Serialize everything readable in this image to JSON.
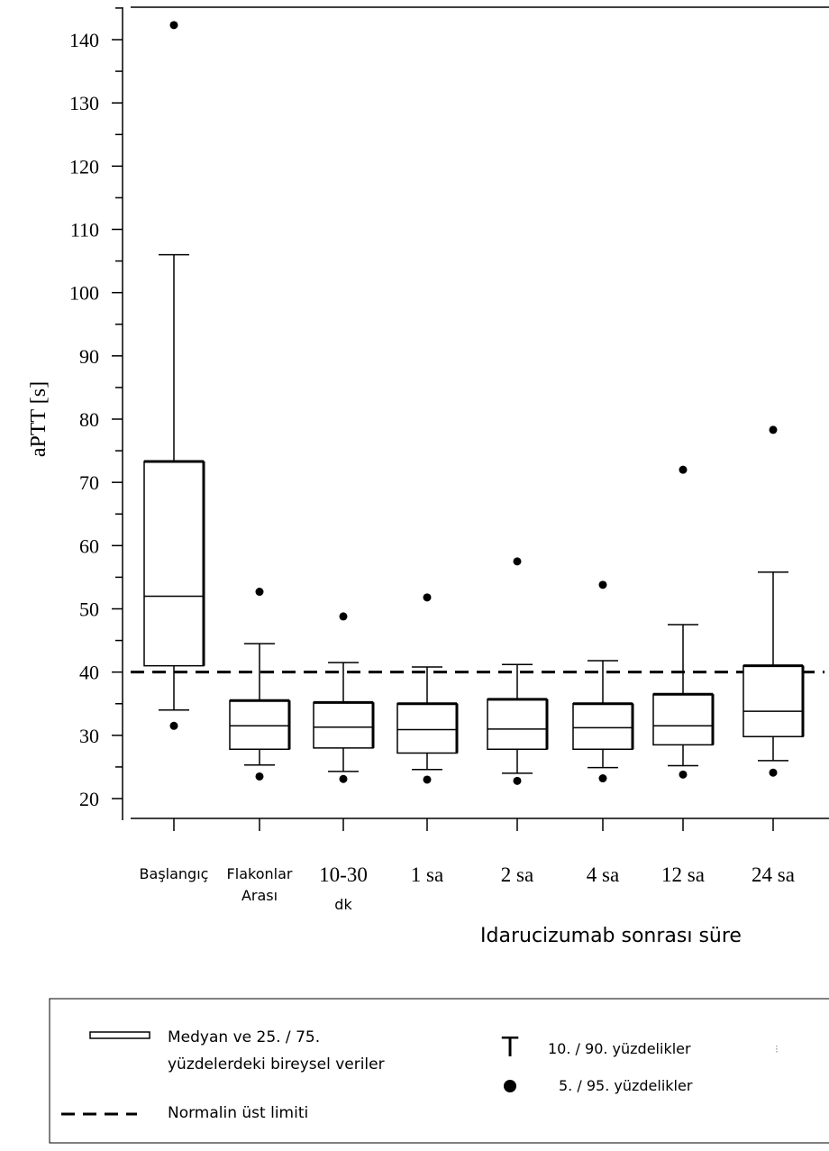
{
  "chart_data": {
    "type": "boxplot",
    "ylabel": "aPTT [s]",
    "xlabel": "Idarucizumab sonrası süre",
    "ylim": [
      17,
      147
    ],
    "yticks": [
      20,
      30,
      40,
      50,
      60,
      70,
      80,
      90,
      100,
      110,
      120,
      130,
      140
    ],
    "upper_limit_normal": 40,
    "categories": [
      {
        "lines": [
          "Başlangıç"
        ],
        "font": "sans"
      },
      {
        "lines": [
          "Flakonlar",
          "Arası"
        ],
        "font": "sans"
      },
      {
        "lines": [
          "10-30",
          "dk"
        ],
        "font": "mixed"
      },
      {
        "lines": [
          "1 sa"
        ],
        "font": "serif"
      },
      {
        "lines": [
          "2 sa"
        ],
        "font": "serif"
      },
      {
        "lines": [
          "4 sa"
        ],
        "font": "serif"
      },
      {
        "lines": [
          "12 sa"
        ],
        "font": "serif"
      },
      {
        "lines": [
          "24 sa"
        ],
        "font": "serif"
      }
    ],
    "boxes": [
      {
        "p5": 31.5,
        "p10": 34,
        "q1": 41,
        "median": 52,
        "q3": 73.3,
        "p90": 106,
        "p95": 142.3
      },
      {
        "p5": 23.5,
        "p10": 25.3,
        "q1": 27.8,
        "median": 31.5,
        "q3": 35.5,
        "p90": 44.5,
        "p95": 52.7
      },
      {
        "p5": 23.1,
        "p10": 24.3,
        "q1": 28,
        "median": 31.3,
        "q3": 35.2,
        "p90": 41.5,
        "p95": 48.8
      },
      {
        "p5": 23,
        "p10": 24.6,
        "q1": 27.2,
        "median": 30.9,
        "q3": 35,
        "p90": 40.8,
        "p95": 51.8
      },
      {
        "p5": 22.8,
        "p10": 24,
        "q1": 27.8,
        "median": 31,
        "q3": 35.7,
        "p90": 41.2,
        "p95": 57.5
      },
      {
        "p5": 23.2,
        "p10": 24.9,
        "q1": 27.8,
        "median": 31.2,
        "q3": 35,
        "p90": 41.8,
        "p95": 53.8
      },
      {
        "p5": 23.8,
        "p10": 25.2,
        "q1": 28.5,
        "median": 31.5,
        "q3": 36.5,
        "p90": 47.5,
        "p95": 72
      },
      {
        "p5": 24.1,
        "p10": 26,
        "q1": 29.8,
        "median": 33.8,
        "q3": 41,
        "p90": 55.8,
        "p95": 78.3
      }
    ],
    "legend": {
      "box_line1": "Medyan ve 25. / 75.",
      "box_line2": "yüzdelerdeki bireysel veriler",
      "dash": "Normalin üst limiti",
      "t_symbol": "T",
      "t_label": "10. / 90. yüzdelikler",
      "dot_label": "5. / 95. yüzdelikler",
      "stray_mark": "⁝"
    }
  }
}
